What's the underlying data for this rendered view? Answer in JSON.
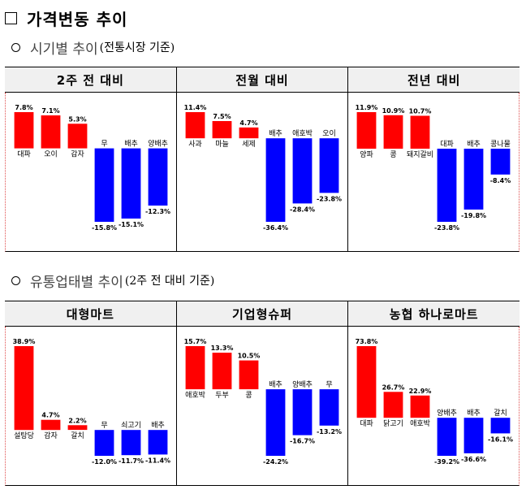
{
  "page": {
    "title": "가격변동 추이"
  },
  "section1": {
    "heading_main": "시기별 추이",
    "heading_sub": "(전통시장 기준)"
  },
  "section2": {
    "heading_main": "유통업태별 추이",
    "heading_sub": "(2주 전 대비 기준)"
  },
  "colors": {
    "increase": "#ff0000",
    "decrease": "#0000ff"
  },
  "chart_data": [
    {
      "type": "bar",
      "title": "2주 전 대비",
      "categories": [
        "대파",
        "오이",
        "감자",
        "무",
        "배추",
        "양배추"
      ],
      "values": [
        7.8,
        7.1,
        5.3,
        -15.8,
        -15.1,
        -12.3
      ],
      "value_labels": [
        "7.8%",
        "7.1%",
        "5.3%",
        "-15.8%",
        "-15.1%",
        "-12.3%"
      ]
    },
    {
      "type": "bar",
      "title": "전월 대비",
      "categories": [
        "사과",
        "마늘",
        "세제",
        "배추",
        "애호박",
        "오이"
      ],
      "values": [
        11.4,
        7.5,
        4.7,
        -36.4,
        -28.4,
        -23.8
      ],
      "value_labels": [
        "11.4%",
        "7.5%",
        "4.7%",
        "-36.4%",
        "-28.4%",
        "-23.8%"
      ]
    },
    {
      "type": "bar",
      "title": "전년 대비",
      "categories": [
        "양파",
        "콩",
        "돼지갈비",
        "대파",
        "배추",
        "콩나물"
      ],
      "values": [
        11.9,
        10.9,
        10.7,
        -23.8,
        -19.8,
        -8.4
      ],
      "value_labels": [
        "11.9%",
        "10.9%",
        "10.7%",
        "-23.8%",
        "-19.8%",
        "-8.4%"
      ]
    },
    {
      "type": "bar",
      "title": "대형마트",
      "categories": [
        "설탕당",
        "감자",
        "갈치",
        "무",
        "쇠고기",
        "배추"
      ],
      "values": [
        38.9,
        4.7,
        2.2,
        -12.0,
        -11.7,
        -11.4
      ],
      "value_labels": [
        "38.9%",
        "4.7%",
        "2.2%",
        "-12.0%",
        "-11.7%",
        "-11.4%"
      ]
    },
    {
      "type": "bar",
      "title": "기업형슈퍼",
      "categories": [
        "애호박",
        "두부",
        "콩",
        "배추",
        "양배추",
        "무"
      ],
      "values": [
        15.7,
        13.3,
        10.5,
        -24.2,
        -16.7,
        -13.2
      ],
      "value_labels": [
        "15.7%",
        "13.3%",
        "10.5%",
        "-24.2%",
        "-16.7%",
        "-13.2%"
      ]
    },
    {
      "type": "bar",
      "title": "농협 하나로마트",
      "categories": [
        "대파",
        "닭고기",
        "애호박",
        "양배추",
        "배추",
        "갈치"
      ],
      "values": [
        73.8,
        26.7,
        22.9,
        -39.2,
        -36.6,
        -16.1
      ],
      "value_labels": [
        "73.8%",
        "26.7%",
        "22.9%",
        "-39.2%",
        "-36.6%",
        "-16.1%"
      ]
    }
  ]
}
